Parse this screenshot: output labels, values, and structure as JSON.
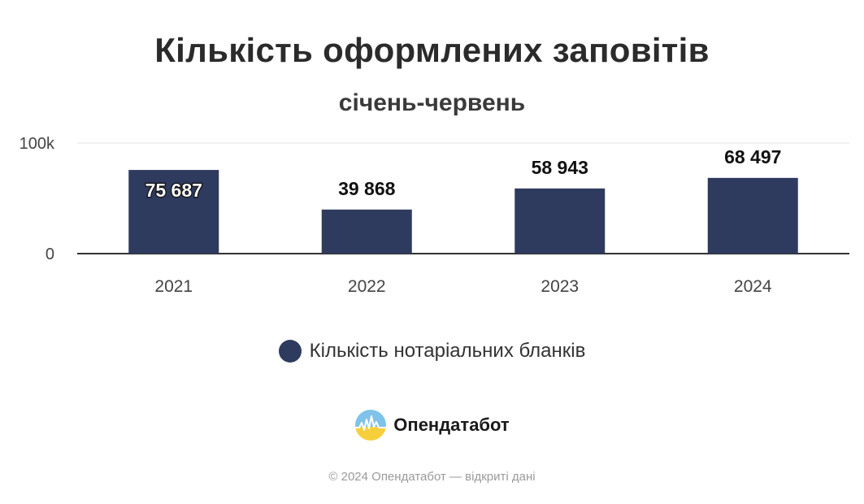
{
  "header": {
    "title": "Кількість оформлених заповітів",
    "subtitle": "січень-червень"
  },
  "legend": {
    "label": "Кількість нотаріальних бланків",
    "color": "#2e3b5e"
  },
  "brand": {
    "name": "Опендатабот",
    "logo_icon": "opendatabot-logo-icon"
  },
  "footer": {
    "text": "© 2024 Опендатабот — відкриті дані"
  },
  "chart_data": {
    "type": "bar",
    "title": "Кількість оформлених заповітів",
    "subtitle": "січень-червень",
    "xlabel": "",
    "ylabel": "",
    "categories": [
      "2021",
      "2022",
      "2023",
      "2024"
    ],
    "series": [
      {
        "name": "Кількість нотаріальних бланків",
        "values": [
          75687,
          39868,
          58943,
          68497
        ],
        "labels": [
          "75 687",
          "39 868",
          "58 943",
          "68 497"
        ],
        "color": "#2e3b5e"
      }
    ],
    "ylim": [
      0,
      100000
    ],
    "yticks": [
      0,
      100000
    ],
    "ytick_labels": [
      "0",
      "100k"
    ],
    "grid": true,
    "legend_position": "bottom"
  }
}
